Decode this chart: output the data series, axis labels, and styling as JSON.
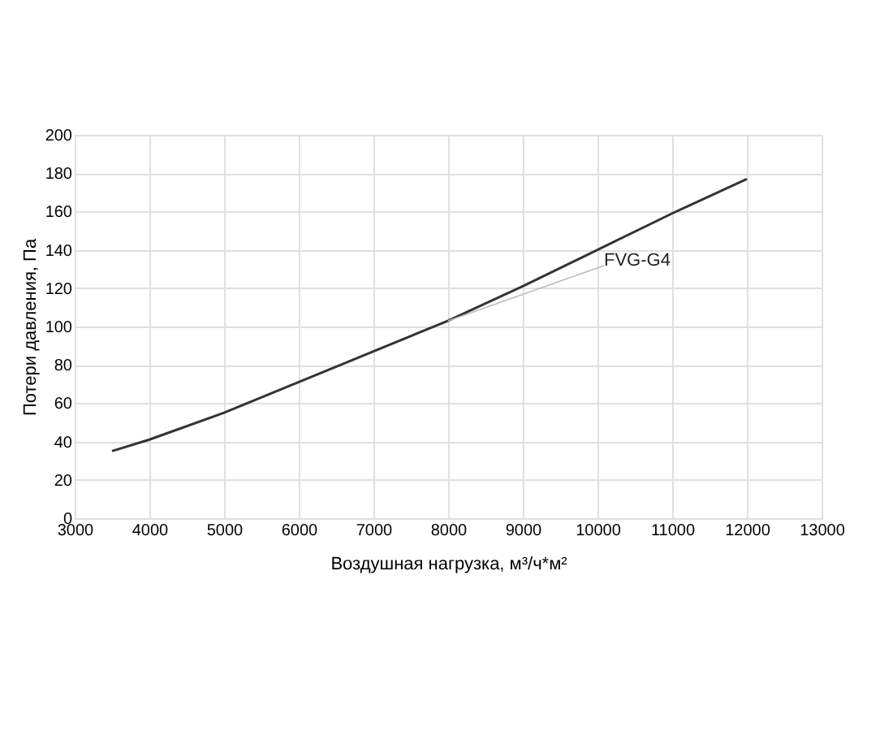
{
  "chart_data": {
    "type": "line",
    "xlabel": "Воздушная нагрузка, м³/ч*м²",
    "ylabel": "Потери давления, Па",
    "x": [
      3500,
      4000,
      5000,
      6000,
      7000,
      8000,
      9000,
      10000,
      11000,
      12000
    ],
    "series": [
      {
        "color": "#333333",
        "values": [
          35,
          41,
          55,
          71,
          87,
          103,
          121,
          140,
          159,
          177
        ]
      }
    ],
    "annotations": [
      {
        "text": "FVG-G4",
        "x": 8000,
        "y": 103
      }
    ],
    "xlim": [
      3000,
      13000
    ],
    "xticks": [
      3000,
      4000,
      5000,
      6000,
      7000,
      8000,
      9000,
      10000,
      11000,
      12000,
      13000
    ],
    "ylim": [
      0,
      200
    ],
    "yticks": [
      0,
      20,
      40,
      60,
      80,
      100,
      120,
      140,
      160,
      180,
      200
    ],
    "grid": true,
    "marker": "none",
    "line_style": "solid"
  }
}
